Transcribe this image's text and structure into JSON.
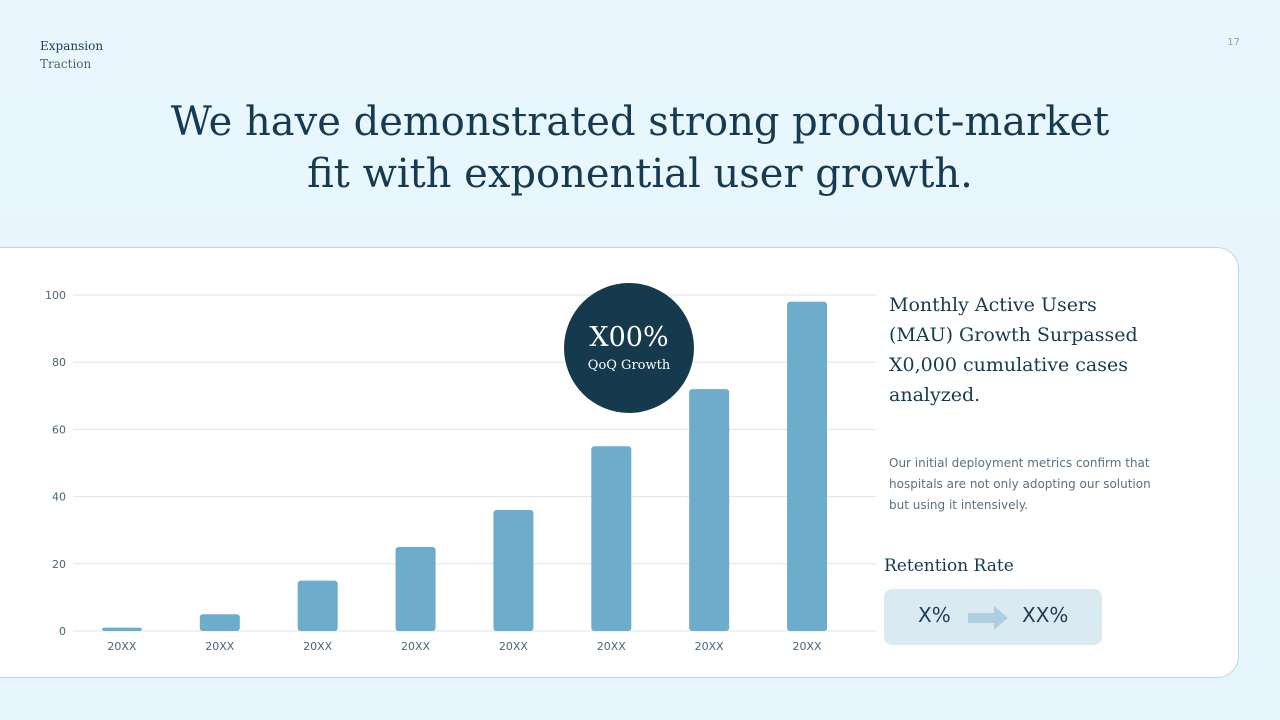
{
  "header": {
    "section": "Expansion",
    "subsection": "Traction",
    "page_number": "17"
  },
  "headline": {
    "line1": "We have demonstrated strong product-market",
    "line2": "fit with exponential user growth."
  },
  "badge": {
    "value": "X00%",
    "label": "QoQ Growth"
  },
  "side": {
    "title": "Monthly Active Users (MAU) Growth Surpassed X0,000 cumulative cases analyzed.",
    "body": "Our initial deployment metrics confirm that hospitals are not only adopting our solution but using it intensively."
  },
  "retention": {
    "label": "Retention Rate",
    "from": "X%",
    "to": "XX%"
  },
  "colors": {
    "bar": "#6eaccb",
    "grid": "#d9e6ee",
    "badge": "#153a4e",
    "text": "#163a4f"
  },
  "chart_data": {
    "type": "bar",
    "title": "",
    "xlabel": "",
    "ylabel": "",
    "categories": [
      "20XX",
      "20XX",
      "20XX",
      "20XX",
      "20XX",
      "20XX",
      "20XX",
      "20XX"
    ],
    "values": [
      1,
      5,
      15,
      25,
      36,
      55,
      72,
      98
    ],
    "ylim": [
      0,
      100
    ],
    "yticks": [
      0,
      20,
      40,
      60,
      80,
      100
    ],
    "grid": true
  }
}
